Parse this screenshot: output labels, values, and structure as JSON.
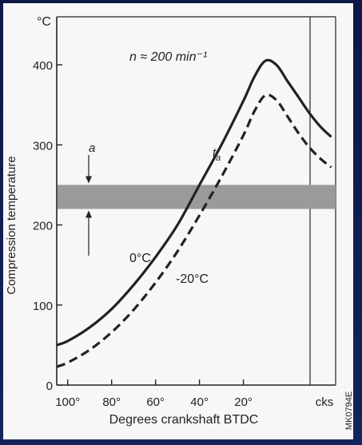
{
  "chart_data": {
    "type": "line",
    "title": "n ≈ 200 min⁻¹",
    "xlabel": "Degrees crankshaft BTDC",
    "ylabel": "Compression temperature",
    "y_unit": "°C",
    "x_ticks": [
      "100°",
      "80°",
      "60°",
      "40°",
      "20°",
      "cks"
    ],
    "y_ticks": [
      "0",
      "100",
      "200",
      "300",
      "400"
    ],
    "ylim": [
      0,
      460
    ],
    "xlim_btdc": [
      105,
      -22
    ],
    "band": {
      "label": "a",
      "low": 220,
      "high": 250
    },
    "curve_label": "t",
    "curve_label_sub": "a",
    "series": [
      {
        "name": "0°C",
        "style": "solid",
        "x_btdc": [
          105,
          100,
          90,
          80,
          70,
          60,
          50,
          40,
          30,
          20,
          15,
          10,
          5,
          0,
          -5,
          -10,
          -15,
          -20
        ],
        "y": [
          50,
          55,
          72,
          95,
          125,
          160,
          200,
          250,
          300,
          355,
          385,
          405,
          400,
          380,
          360,
          340,
          323,
          310
        ]
      },
      {
        "name": "-20°C",
        "style": "dashed",
        "x_btdc": [
          105,
          100,
          90,
          80,
          70,
          60,
          50,
          40,
          30,
          20,
          15,
          10,
          5,
          0,
          -5,
          -10,
          -15,
          -20
        ],
        "y": [
          23,
          28,
          44,
          66,
          94,
          128,
          167,
          212,
          260,
          312,
          342,
          362,
          356,
          336,
          315,
          297,
          283,
          272
        ]
      }
    ],
    "grid": false,
    "figure_code": "MK0794E"
  }
}
